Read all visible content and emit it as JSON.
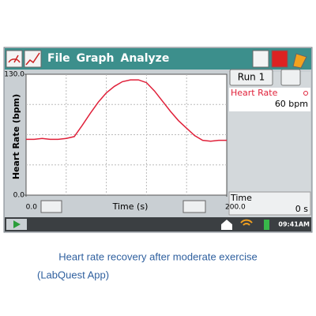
{
  "menu": [
    "File",
    "Graph",
    "Analyze"
  ],
  "run_button": "Run 1",
  "sensor": {
    "name": "Heart Rate",
    "reading": "60 bpm"
  },
  "time_meter": {
    "name": "Time",
    "reading": "0 s"
  },
  "clock": "09:41AM",
  "caption": [
    "Heart rate recovery after moderate exercise",
    "(LabQuest App)"
  ],
  "chart_data": {
    "type": "line",
    "ylabel": "Heart Rate (bpm)",
    "xlabel": "Time (s)",
    "x": [
      0,
      8,
      16,
      24,
      32,
      40,
      48,
      56,
      64,
      72,
      80,
      88,
      96,
      104,
      112,
      120,
      128,
      136,
      144,
      152,
      160,
      168,
      176,
      184,
      192,
      200
    ],
    "series": [
      {
        "name": "Heart Rate",
        "color": "#e0213a",
        "values": [
          60,
          60,
          61,
          60,
          60,
          61,
          63,
          75,
          88,
          100,
          110,
          117,
          122,
          124,
          124,
          121,
          112,
          101,
          90,
          80,
          72,
          64,
          59,
          58,
          59,
          59
        ]
      }
    ],
    "xlim": [
      0,
      200
    ],
    "ylim": [
      0,
      130
    ],
    "xticks": [
      {
        "value": 0,
        "label": "0.0"
      },
      {
        "value": 200,
        "label": "200.0"
      }
    ],
    "yticks": [
      {
        "value": 0,
        "label": "0.0"
      },
      {
        "value": 130,
        "label": "130.0"
      }
    ],
    "xgrid": [
      40,
      80,
      120,
      160
    ],
    "ygrid": [
      32.5,
      65,
      97.5
    ],
    "grid": true
  }
}
